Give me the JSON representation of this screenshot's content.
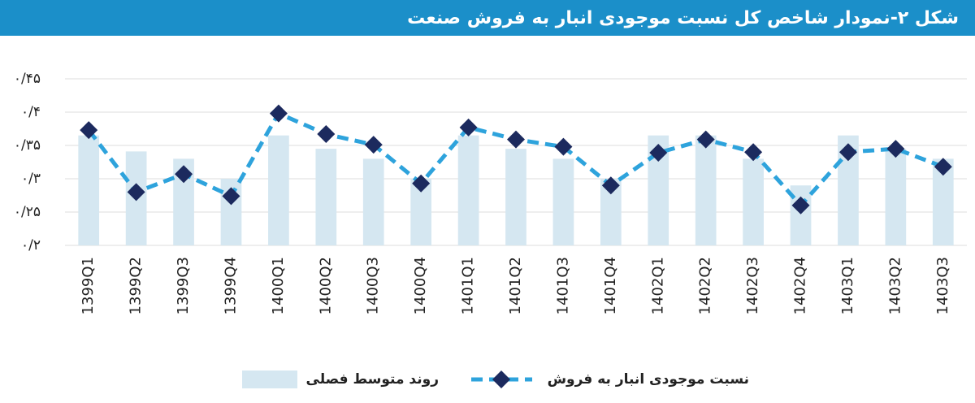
{
  "chart_data": {
    "type": "bar-line",
    "title": "شکل ۲-نمودار شاخص کل نسبت موجودی انبار به فروش صنعت",
    "categories": [
      "1399Q1",
      "1399Q2",
      "1399Q3",
      "1399Q4",
      "1400Q1",
      "1400Q2",
      "1400Q3",
      "1400Q4",
      "1401Q1",
      "1401Q2",
      "1401Q3",
      "1401Q4",
      "1402Q1",
      "1402Q2",
      "1402Q3",
      "1402Q4",
      "1403Q1",
      "1403Q2",
      "1403Q3"
    ],
    "series": [
      {
        "name": "روند متوسط فصلی",
        "type": "bar",
        "color": "#d5e7f1",
        "values": [
          0.365,
          0.341,
          0.33,
          0.3,
          0.365,
          0.345,
          0.33,
          0.3,
          0.365,
          0.345,
          0.33,
          0.3,
          0.365,
          0.365,
          0.33,
          0.29,
          0.365,
          0.345,
          0.33
        ]
      },
      {
        "name": "نسبت موجودی انبار به فروش",
        "type": "line",
        "color": "#2ea3dc",
        "marker_color": "#1c2a5e",
        "values": [
          0.373,
          0.28,
          0.307,
          0.274,
          0.398,
          0.367,
          0.351,
          0.293,
          0.377,
          0.359,
          0.348,
          0.29,
          0.339,
          0.359,
          0.34,
          0.26,
          0.34,
          0.345,
          0.318
        ]
      }
    ],
    "ylim": [
      0.2,
      0.45
    ],
    "yticks": [
      {
        "value": 0.2,
        "label": "۰/۲"
      },
      {
        "value": 0.25,
        "label": "۰/۲۵"
      },
      {
        "value": 0.3,
        "label": "۰/۳"
      },
      {
        "value": 0.35,
        "label": "۰/۳۵"
      },
      {
        "value": 0.4,
        "label": "۰/۴"
      },
      {
        "value": 0.45,
        "label": "۰/۴۵"
      }
    ],
    "grid": true
  }
}
